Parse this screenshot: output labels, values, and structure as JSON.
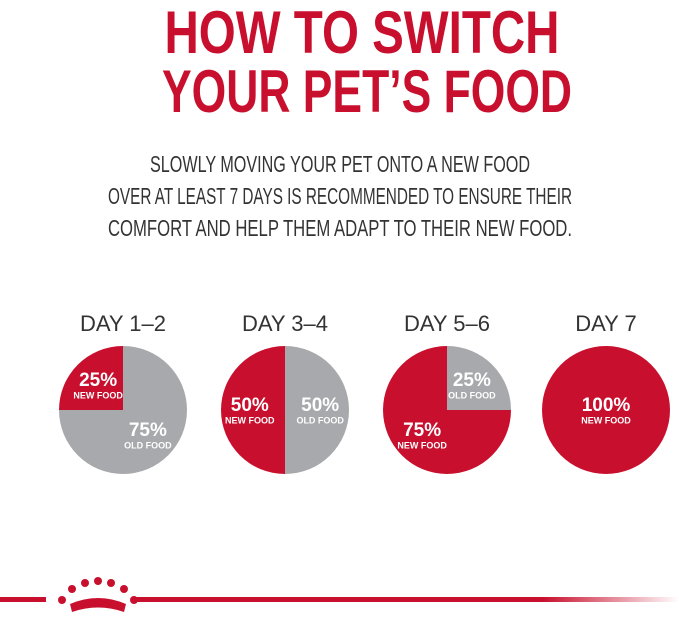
{
  "header": {
    "title": [
      "HOW TO SWITCH",
      "YOUR PET’S FOOD"
    ],
    "intro": [
      "SLOWLY MOVING YOUR PET ONTO A NEW FOOD",
      "OVER AT LEAST 7 DAYS IS RECOMMENDED TO ENSURE THEIR",
      "COMFORT AND HELP THEM ADAPT TO THEIR NEW FOOD."
    ]
  },
  "chart_data": [
    {
      "type": "pie",
      "title": "DAY 1–2",
      "categories": [
        "NEW FOOD",
        "OLD FOOD"
      ],
      "values": [
        25,
        75
      ],
      "value_labels": [
        "25%",
        "75%"
      ],
      "colors": [
        "#c8102e",
        "#a7a9ac"
      ]
    },
    {
      "type": "pie",
      "title": "DAY 3–4",
      "categories": [
        "NEW FOOD",
        "OLD FOOD"
      ],
      "values": [
        50,
        50
      ],
      "value_labels": [
        "50%",
        "50%"
      ],
      "colors": [
        "#c8102e",
        "#a7a9ac"
      ]
    },
    {
      "type": "pie",
      "title": "DAY 5–6",
      "categories": [
        "NEW FOOD",
        "OLD FOOD"
      ],
      "values": [
        75,
        25
      ],
      "value_labels": [
        "75%",
        "25%"
      ],
      "colors": [
        "#c8102e",
        "#a7a9ac"
      ]
    },
    {
      "type": "pie",
      "title": "DAY 7",
      "categories": [
        "NEW FOOD"
      ],
      "values": [
        100
      ],
      "value_labels": [
        "100%"
      ],
      "colors": [
        "#c8102e"
      ]
    }
  ]
}
